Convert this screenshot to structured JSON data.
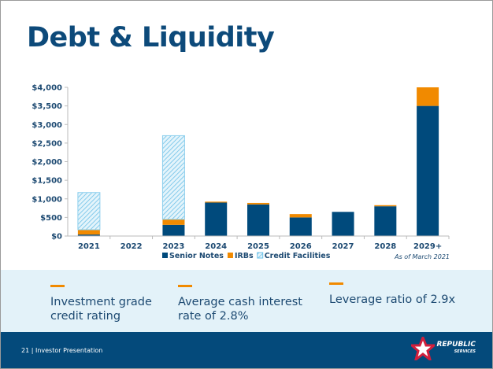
{
  "slide": {
    "title": "Debt & Liquidity",
    "as_of": "As of March 2021"
  },
  "kpis": [
    {
      "text": "Investment grade credit rating"
    },
    {
      "text": "Average cash interest rate of 2.8%"
    },
    {
      "text": "Leverage ratio of 2.9x"
    }
  ],
  "footer": {
    "text": "21 | Investor Presentation",
    "logo_text": "REPUBLIC",
    "logo_sub": "SERVICES"
  },
  "colors": {
    "senior": "#004a7c",
    "irbs": "#f18a00",
    "credit": "#8fd0ee"
  },
  "chart_data": {
    "type": "bar",
    "stacked": true,
    "categories": [
      "2021",
      "2022",
      "2023",
      "2024",
      "2025",
      "2026",
      "2027",
      "2028",
      "2029+"
    ],
    "series": [
      {
        "name": "Senior Notes",
        "values": [
          40,
          0,
          300,
          900,
          850,
          500,
          650,
          800,
          3500
        ]
      },
      {
        "name": "IRBs",
        "values": [
          130,
          0,
          150,
          25,
          40,
          90,
          0,
          30,
          500
        ]
      },
      {
        "name": "Credit Facilities",
        "values": [
          1000,
          0,
          2250,
          0,
          0,
          0,
          0,
          0,
          0
        ]
      }
    ],
    "ylim": [
      0,
      4000
    ],
    "yticks": [
      0,
      500,
      1000,
      1500,
      2000,
      2500,
      3000,
      3500,
      4000
    ],
    "ytick_labels": [
      "$0",
      "$500",
      "$1,000",
      "$1,500",
      "$2,000",
      "$2,500",
      "$3,000",
      "$3,500",
      "$4,000"
    ],
    "legend_position": "bottom",
    "grid": false
  }
}
